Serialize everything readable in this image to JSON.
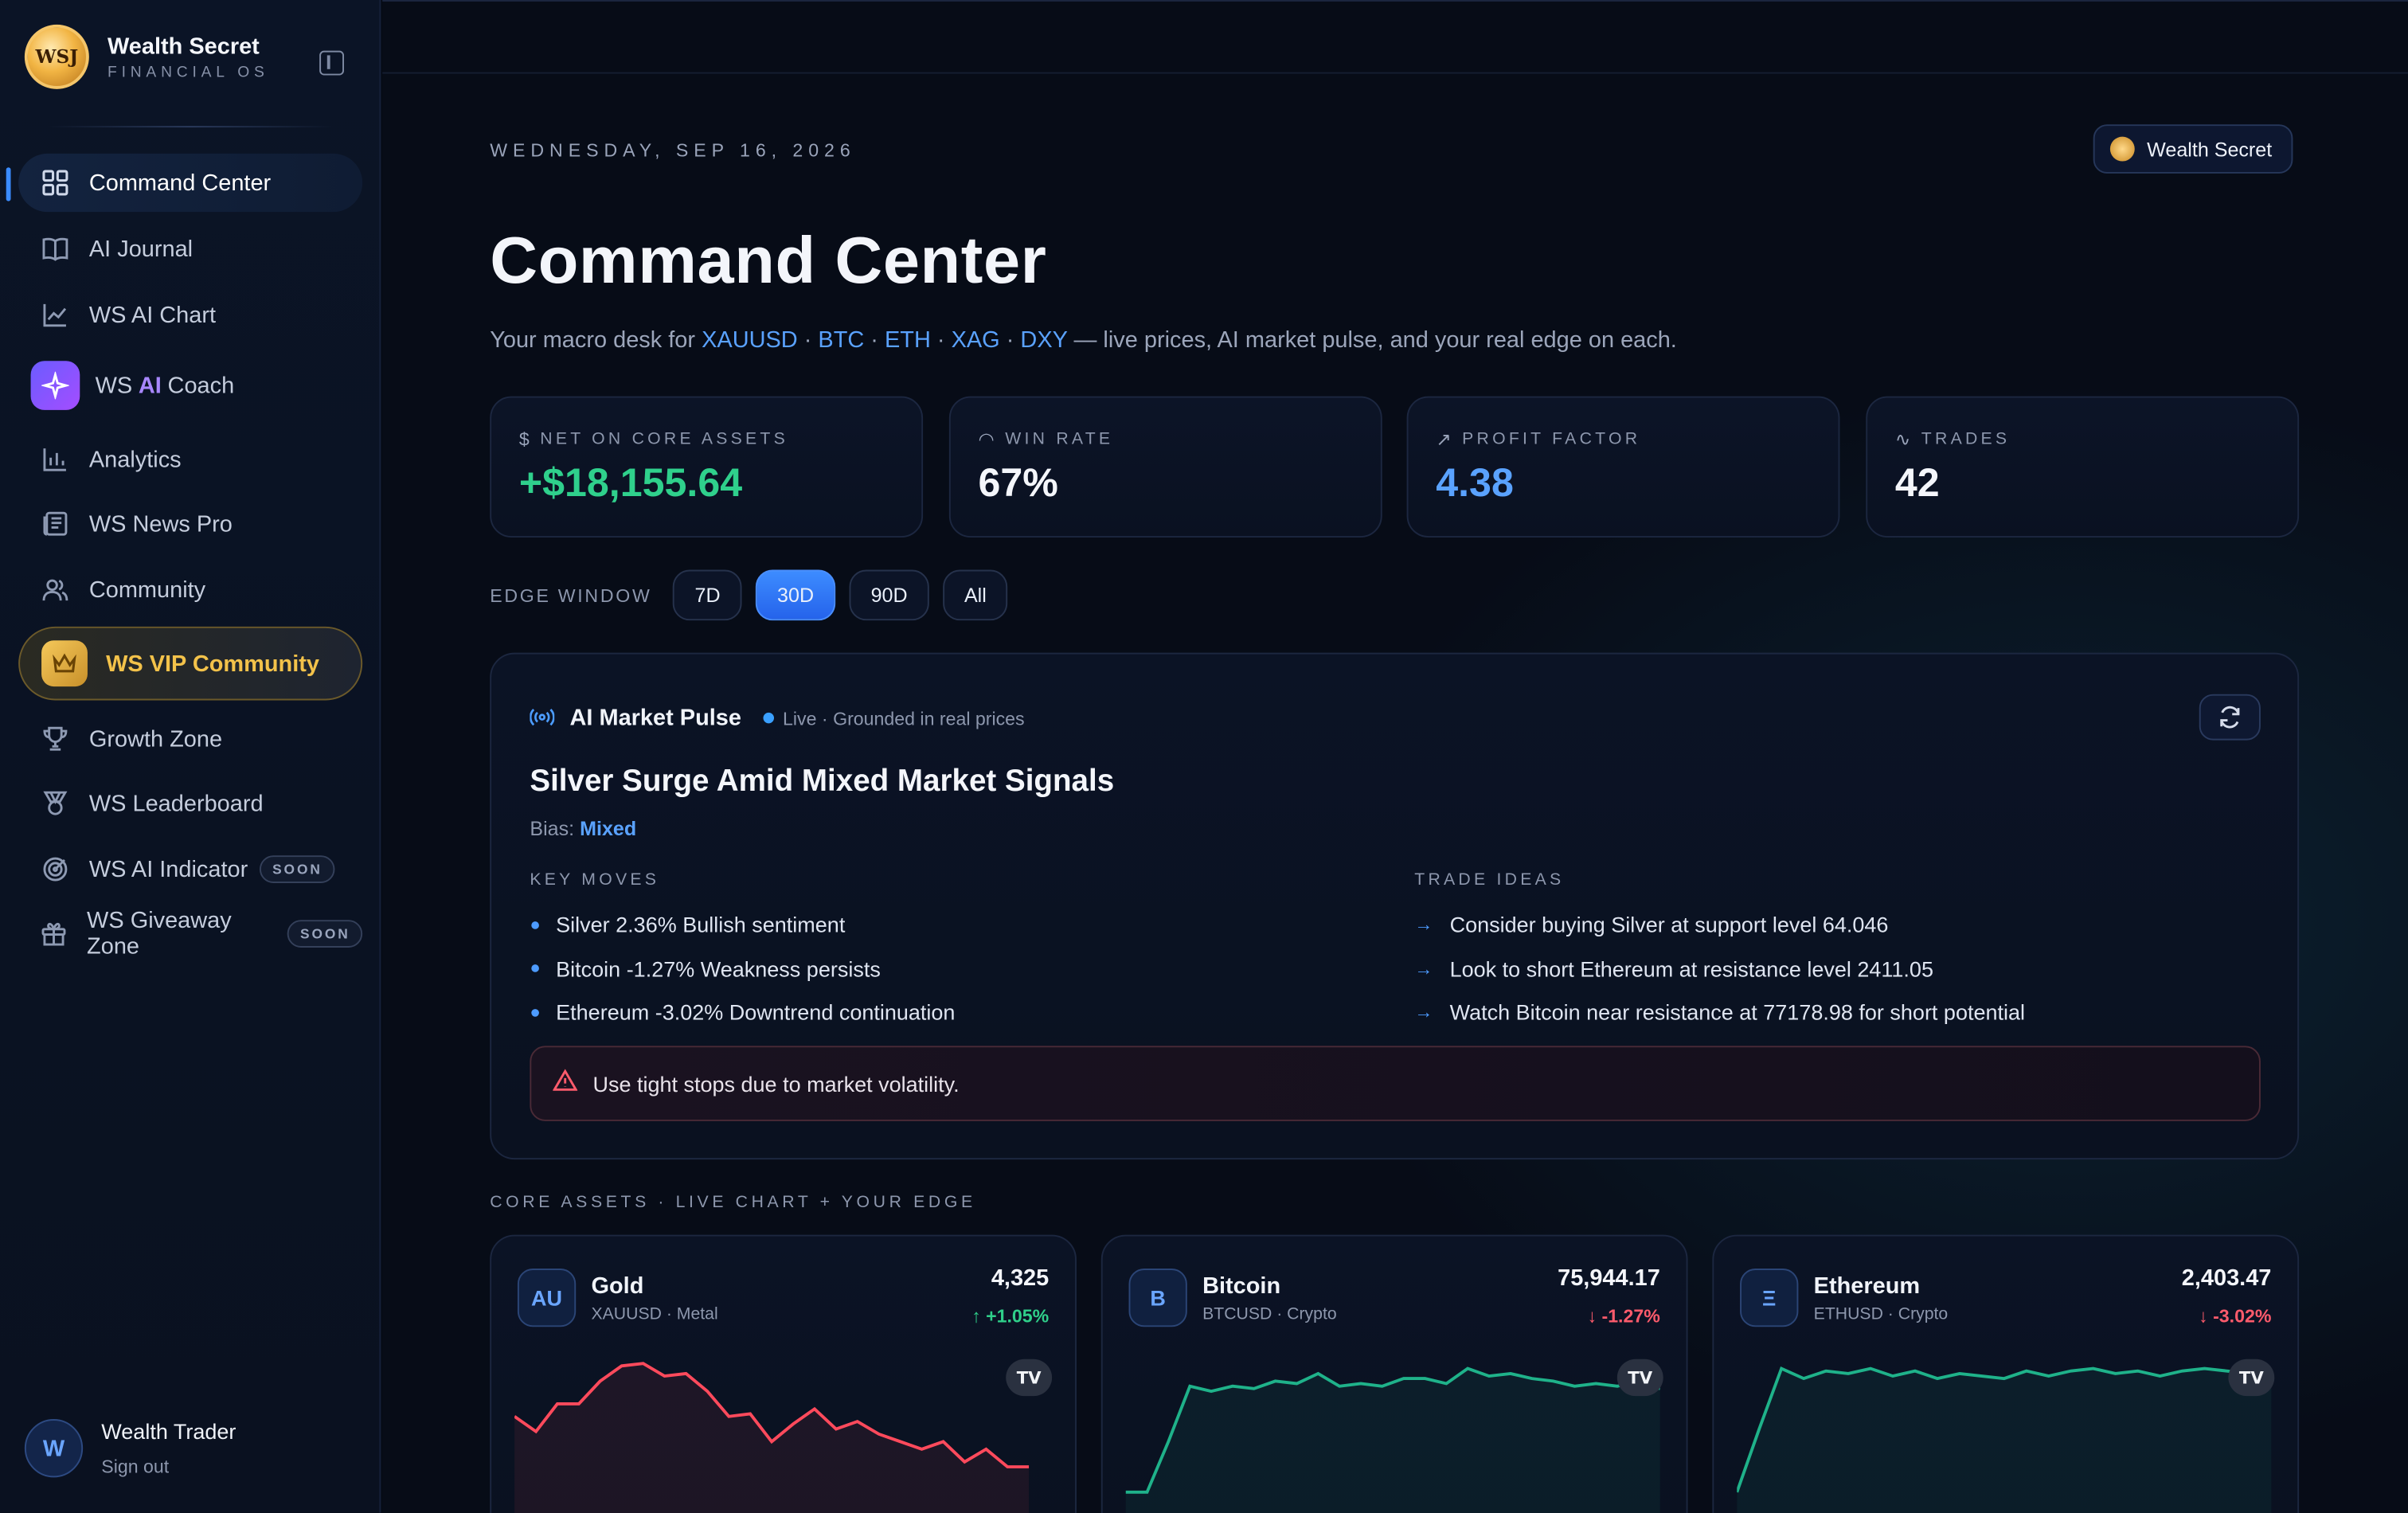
{
  "brand": {
    "title": "Wealth Secret",
    "subtitle": "FINANCIAL OS",
    "logo_text": "WSJ"
  },
  "nav": [
    {
      "label": "Command Center",
      "icon": "grid-icon",
      "active": true
    },
    {
      "label": "AI Journal",
      "icon": "book-icon"
    },
    {
      "label": "WS AI Chart",
      "icon": "line-chart-icon"
    },
    {
      "label_pre": "WS",
      "label_ai": "AI",
      "label_post": "Coach",
      "icon": "sparkle-icon"
    },
    {
      "label": "Analytics",
      "icon": "bar-chart-icon"
    },
    {
      "label": "WS News Pro",
      "icon": "newspaper-icon"
    },
    {
      "label": "Community",
      "icon": "users-icon"
    },
    {
      "label": "WS VIP Community",
      "icon": "crown-icon"
    },
    {
      "label": "Growth Zone",
      "icon": "trophy-icon"
    },
    {
      "label": "WS Leaderboard",
      "icon": "medal-icon"
    },
    {
      "label": "WS AI Indicator",
      "icon": "target-icon",
      "badge": "SOON"
    },
    {
      "label": "WS Giveaway Zone",
      "icon": "gift-icon",
      "badge": "SOON"
    }
  ],
  "user": {
    "initial": "W",
    "name": "Wealth Trader",
    "sign_out": "Sign out"
  },
  "header": {
    "date": "WEDNESDAY, SEP 16, 2026",
    "chip_label": "Wealth Secret",
    "title": "Command Center",
    "subtitle_pre": "Your macro desk for",
    "tickers": [
      "XAUUSD",
      "BTC",
      "ETH",
      "XAG",
      "DXY"
    ],
    "subtitle_post": "— live prices, AI market pulse, and your real edge on each."
  },
  "stats": [
    {
      "label": "NET ON CORE ASSETS",
      "icon": "$",
      "value": "+$18,155.64",
      "color": "#2fd08c"
    },
    {
      "label": "WIN RATE",
      "icon": "◠",
      "value": "67%",
      "color": "#f4f6fb"
    },
    {
      "label": "PROFIT FACTOR",
      "icon": "↗",
      "value": "4.38",
      "color": "#5aa2ff"
    },
    {
      "label": "TRADES",
      "icon": "∿",
      "value": "42",
      "color": "#f4f6fb"
    }
  ],
  "edge_window": {
    "label": "EDGE WINDOW",
    "options": [
      "7D",
      "30D",
      "90D",
      "All"
    ],
    "selected": "30D"
  },
  "pulse": {
    "title": "AI Market Pulse",
    "status": "Live · Grounded in real prices",
    "headline": "Silver Surge Amid Mixed Market Signals",
    "bias_label": "Bias:",
    "bias_value": "Mixed",
    "key_moves_title": "KEY MOVES",
    "key_moves": [
      "Silver 2.36% Bullish sentiment",
      "Bitcoin -1.27% Weakness persists",
      "Ethereum -3.02% Downtrend continuation"
    ],
    "trade_ideas_title": "TRADE IDEAS",
    "trade_ideas": [
      "Consider buying Silver at support level 64.046",
      "Look to short Ethereum at resistance level 2411.05",
      "Watch Bitcoin near resistance at 77178.98 for short potential"
    ],
    "warning": "Use tight stops due to market volatility."
  },
  "core_assets": {
    "title": "CORE ASSETS · LIVE CHART + YOUR EDGE",
    "items": [
      {
        "badge": "AU",
        "name": "Gold",
        "sub": "XAUUSD · Metal",
        "price": "4,325",
        "change": "↑ +1.05%",
        "direction": "up",
        "line_color": "#ff4a5c",
        "series": [
          40,
          34,
          45,
          45,
          54,
          60,
          61,
          56,
          57,
          50,
          40,
          41,
          30,
          37,
          43,
          35,
          38,
          33,
          30,
          27,
          30,
          22,
          27,
          20,
          20
        ]
      },
      {
        "badge": "B",
        "name": "Bitcoin",
        "sub": "BTCUSD · Crypto",
        "price": "75,944.17",
        "change": "↓ -1.27%",
        "direction": "down",
        "line_color": "#1fb28a",
        "series": [
          10,
          10,
          30,
          52,
          50,
          52,
          51,
          54,
          53,
          57,
          52,
          53,
          52,
          55,
          55,
          53,
          59,
          56,
          57,
          55,
          54,
          52,
          53,
          52,
          54,
          51
        ]
      },
      {
        "badge": "Ξ",
        "name": "Ethereum",
        "sub": "ETHUSD · Crypto",
        "price": "2,403.47",
        "change": "↓ -3.02%",
        "direction": "down",
        "line_color": "#1fb28a",
        "series": [
          10,
          35,
          59,
          55,
          58,
          57,
          59,
          56,
          58,
          55,
          57,
          56,
          55,
          58,
          56,
          58,
          59,
          57,
          58,
          56,
          58,
          59,
          58,
          57,
          58
        ]
      }
    ]
  }
}
